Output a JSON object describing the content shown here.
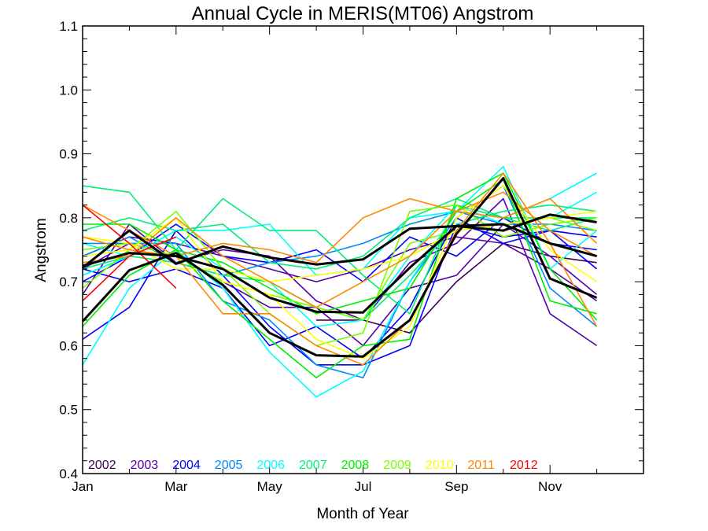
{
  "chart_data": {
    "type": "line",
    "title": "Annual Cycle in MERIS(MT06) Angstrom",
    "xlabel": "Month of Year",
    "ylabel": "Angstrom",
    "xlim": [
      1,
      13
    ],
    "ylim": [
      0.4,
      1.1
    ],
    "x_ticks": [
      {
        "x": 1,
        "label": "Jan"
      },
      {
        "x": 3,
        "label": "Mar"
      },
      {
        "x": 5,
        "label": "May"
      },
      {
        "x": 7,
        "label": "Jul"
      },
      {
        "x": 9,
        "label": "Sep"
      },
      {
        "x": 11,
        "label": "Nov"
      }
    ],
    "y_ticks": [
      {
        "y": 0.4,
        "label": "0.4"
      },
      {
        "y": 0.5,
        "label": "0.5"
      },
      {
        "y": 0.6,
        "label": "0.6"
      },
      {
        "y": 0.7,
        "label": "0.7"
      },
      {
        "y": 0.8,
        "label": "0.8"
      },
      {
        "y": 0.9,
        "label": "0.9"
      },
      {
        "y": 1.0,
        "label": "1.0"
      },
      {
        "y": 1.1,
        "label": "1.1"
      }
    ],
    "grid": false,
    "legend_position": "bottom-left",
    "x": [
      1,
      2,
      3,
      4,
      5,
      6,
      7,
      8,
      9,
      10,
      11,
      12
    ],
    "series": [
      {
        "name": "2002",
        "color": "#3d0055",
        "values": [
          null,
          null,
          null,
          null,
          null,
          0.64,
          0.64,
          0.62,
          0.7,
          0.76,
          0.74,
          0.73
        ]
      },
      {
        "name": "2003",
        "color": "#5500aa",
        "values": [
          0.68,
          0.79,
          0.73,
          0.75,
          0.74,
          0.67,
          0.64,
          0.73,
          0.76,
          0.83,
          0.65,
          0.6
        ]
      },
      {
        "name": "2003",
        "color": "#5500aa",
        "values": [
          0.72,
          0.76,
          0.74,
          0.7,
          0.66,
          0.66,
          0.6,
          0.69,
          0.71,
          0.79,
          0.74,
          0.68
        ]
      },
      {
        "name": "2003",
        "color": "#5500aa",
        "values": [
          0.74,
          0.77,
          0.76,
          0.74,
          0.72,
          0.7,
          0.72,
          0.75,
          0.77,
          0.76,
          0.72,
          0.67
        ]
      },
      {
        "name": "2004",
        "color": "#0000ff",
        "values": [
          0.61,
          0.66,
          0.78,
          0.71,
          0.63,
          0.57,
          0.57,
          0.6,
          0.79,
          0.77,
          0.78,
          0.72
        ]
      },
      {
        "name": "2004",
        "color": "#0000ff",
        "values": [
          0.7,
          0.74,
          0.79,
          0.74,
          0.73,
          0.75,
          0.7,
          0.77,
          0.74,
          0.8,
          0.76,
          0.75
        ]
      },
      {
        "name": "2004",
        "color": "#0000ff",
        "values": [
          0.72,
          0.7,
          0.72,
          0.69,
          0.6,
          0.63,
          0.58,
          0.66,
          0.8,
          0.76,
          0.78,
          0.77
        ]
      },
      {
        "name": "2005",
        "color": "#0088ff",
        "values": [
          0.76,
          0.76,
          0.76,
          0.67,
          0.64,
          0.57,
          0.55,
          0.7,
          0.8,
          0.85,
          0.69,
          0.63
        ]
      },
      {
        "name": "2005",
        "color": "#0088ff",
        "values": [
          0.74,
          0.77,
          0.73,
          0.71,
          0.73,
          0.74,
          0.76,
          0.79,
          0.81,
          0.79,
          0.79,
          0.78
        ]
      },
      {
        "name": "2006",
        "color": "#00ffff",
        "values": [
          0.57,
          0.69,
          0.75,
          0.69,
          0.59,
          0.52,
          0.56,
          0.7,
          0.81,
          0.88,
          0.72,
          0.78
        ]
      },
      {
        "name": "2006",
        "color": "#00ffff",
        "values": [
          0.71,
          0.74,
          0.78,
          0.78,
          0.79,
          0.71,
          0.72,
          0.8,
          0.81,
          0.8,
          0.83,
          0.87
        ]
      },
      {
        "name": "2006",
        "color": "#00ffff",
        "values": [
          0.76,
          0.74,
          0.77,
          0.72,
          0.7,
          0.63,
          0.64,
          0.74,
          0.82,
          0.79,
          0.8,
          0.84
        ]
      },
      {
        "name": "2007",
        "color": "#00ee77",
        "values": [
          0.85,
          0.84,
          0.75,
          0.83,
          0.78,
          0.78,
          0.71,
          0.65,
          0.82,
          0.8,
          0.8,
          0.8
        ]
      },
      {
        "name": "2007",
        "color": "#00ee77",
        "values": [
          0.78,
          0.8,
          0.78,
          0.79,
          0.73,
          0.72,
          0.74,
          0.8,
          0.83,
          0.8,
          0.78,
          0.8
        ]
      },
      {
        "name": "2007",
        "color": "#00ee77",
        "values": [
          0.72,
          0.74,
          0.73,
          0.71,
          0.7,
          0.66,
          0.64,
          0.71,
          0.79,
          0.81,
          0.82,
          0.81
        ]
      },
      {
        "name": "2008",
        "color": "#00ee00",
        "values": [
          0.63,
          0.71,
          0.75,
          0.67,
          0.61,
          0.55,
          0.6,
          0.61,
          0.83,
          0.87,
          0.72,
          0.64
        ]
      },
      {
        "name": "2008",
        "color": "#00ee00",
        "values": [
          0.79,
          0.79,
          0.75,
          0.73,
          0.69,
          0.65,
          0.67,
          0.69,
          0.81,
          0.86,
          0.67,
          0.65
        ]
      },
      {
        "name": "2009",
        "color": "#77ff00",
        "values": [
          0.69,
          0.75,
          0.81,
          0.72,
          0.65,
          0.6,
          0.62,
          0.81,
          0.82,
          0.77,
          0.79,
          0.8
        ]
      },
      {
        "name": "2009",
        "color": "#77ff00",
        "values": [
          0.75,
          0.76,
          0.74,
          0.7,
          0.68,
          0.66,
          0.64,
          0.76,
          0.78,
          0.79,
          0.8,
          0.78
        ]
      },
      {
        "name": "2010",
        "color": "#ffff00",
        "values": [
          0.74,
          0.75,
          0.8,
          0.7,
          0.68,
          0.61,
          0.58,
          0.63,
          0.8,
          0.85,
          0.75,
          0.7
        ]
      },
      {
        "name": "2010",
        "color": "#ffff00",
        "values": [
          0.77,
          0.76,
          0.72,
          0.72,
          0.7,
          0.71,
          0.72,
          0.74,
          0.78,
          0.79,
          0.8,
          0.81
        ]
      },
      {
        "name": "2011",
        "color": "#ff8800",
        "values": [
          0.82,
          0.78,
          0.74,
          0.65,
          0.65,
          0.6,
          0.57,
          0.64,
          0.78,
          0.87,
          0.76,
          0.63
        ]
      },
      {
        "name": "2011",
        "color": "#ff8800",
        "values": [
          0.77,
          0.75,
          0.74,
          0.76,
          0.75,
          0.73,
          0.8,
          0.83,
          0.81,
          0.8,
          0.83,
          0.76
        ]
      },
      {
        "name": "2011",
        "color": "#ff8800",
        "values": [
          0.73,
          0.74,
          0.8,
          0.74,
          0.7,
          0.66,
          0.7,
          0.74,
          0.81,
          0.84,
          0.78,
          0.74
        ]
      },
      {
        "name": "2012",
        "color": "#ff0000",
        "values": [
          0.82,
          0.76,
          0.69,
          null,
          null,
          null,
          null,
          null,
          null,
          null,
          null,
          null
        ]
      },
      {
        "name": "2012",
        "color": "#ff0000",
        "values": [
          0.67,
          0.74,
          0.77,
          null,
          null,
          null,
          null,
          null,
          null,
          null,
          null,
          null
        ]
      },
      {
        "name": "",
        "color": "#000000",
        "values": [
          0.725,
          0.745,
          0.74,
          0.72,
          0.675,
          0.653,
          0.652,
          0.722,
          0.787,
          0.79,
          0.76,
          0.74
        ]
      },
      {
        "name": "",
        "color": "#000000",
        "values": [
          0.638,
          0.718,
          0.745,
          0.695,
          0.62,
          0.585,
          0.583,
          0.64,
          0.775,
          0.862,
          0.705,
          0.675
        ]
      },
      {
        "name": "",
        "color": "#000000",
        "values": [
          0.722,
          0.78,
          0.728,
          0.755,
          0.738,
          0.727,
          0.735,
          0.783,
          0.787,
          0.78,
          0.805,
          0.793
        ]
      }
    ],
    "legend": [
      {
        "label": "2002",
        "color": "#3d0055"
      },
      {
        "label": "2003",
        "color": "#5500aa"
      },
      {
        "label": "2004",
        "color": "#0000ff"
      },
      {
        "label": "2005",
        "color": "#0088ff"
      },
      {
        "label": "2006",
        "color": "#00ffff"
      },
      {
        "label": "2007",
        "color": "#00ee77"
      },
      {
        "label": "2008",
        "color": "#00ee00"
      },
      {
        "label": "2009",
        "color": "#77ff00"
      },
      {
        "label": "2010",
        "color": "#ffff00"
      },
      {
        "label": "2011",
        "color": "#ff8800"
      },
      {
        "label": "2012",
        "color": "#ff0000"
      }
    ]
  }
}
